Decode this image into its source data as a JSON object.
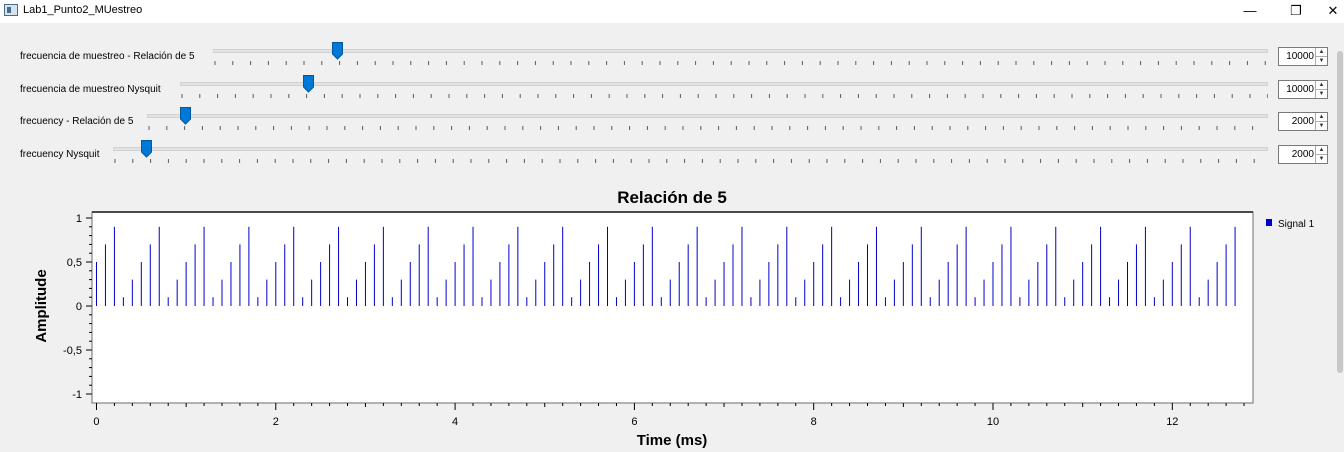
{
  "window": {
    "title": "Lab1_Punto2_MUestreo",
    "minimize": "—",
    "restore": "❐",
    "close": "✕"
  },
  "sliders": [
    {
      "label": "frecuencia de muestreo - Relación de 5",
      "value": "10000",
      "position": 0.118
    },
    {
      "label": "frecuencia de muestreo Nysquit",
      "value": "10000",
      "position": 0.118
    },
    {
      "label": "frecuency - Relación de 5",
      "value": "2000",
      "position": 0.034
    },
    {
      "label": "frecuency Nysquit",
      "value": "2000",
      "position": 0.029
    }
  ],
  "chart_data": {
    "type": "stem",
    "title": "Relación de 5",
    "xlabel": "Time (ms)",
    "ylabel": "Amplitude",
    "xlim": [
      -0.05,
      12.9
    ],
    "ylim": [
      -1,
      1
    ],
    "xticks": [
      "0",
      "2",
      "4",
      "6",
      "8",
      "10",
      "12"
    ],
    "yticks": [
      "1",
      "0,5",
      "0",
      "-0,5",
      "-1"
    ],
    "legend": {
      "position": "right",
      "entries": [
        "Signal 1"
      ]
    },
    "series": [
      {
        "name": "Signal 1",
        "color": "#0000cd",
        "sample_period_ms": 0.1,
        "t_end_ms": 12.7,
        "pattern": [
          0.5,
          0.7,
          0.9,
          0.1,
          0.3
        ]
      }
    ]
  }
}
